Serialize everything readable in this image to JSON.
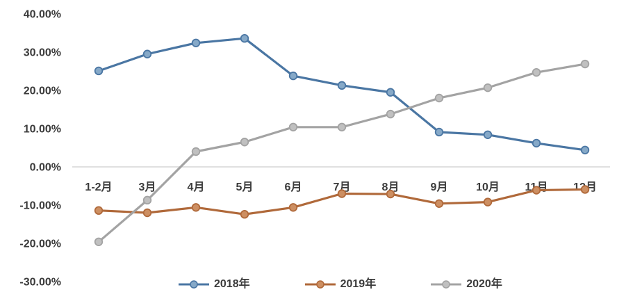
{
  "chart_data": {
    "type": "line",
    "title": "",
    "xlabel": "",
    "ylabel": "",
    "unit": "percent",
    "categories": [
      "1-2月",
      "3月",
      "4月",
      "5月",
      "6月",
      "7月",
      "8月",
      "9月",
      "10月",
      "11月",
      "12月"
    ],
    "series": [
      {
        "name": "2018年",
        "color": "#4a76a3",
        "marker_fill": "#86a9c8",
        "values": [
          25.1,
          29.5,
          32.4,
          33.6,
          23.8,
          21.3,
          19.5,
          9.1,
          8.4,
          6.2,
          4.4
        ]
      },
      {
        "name": "2019年",
        "color": "#b0693a",
        "marker_fill": "#cd8f62",
        "values": [
          -11.4,
          -12.0,
          -10.6,
          -12.4,
          -10.6,
          -7.0,
          -7.1,
          -9.6,
          -9.2,
          -6.1,
          -5.9
        ]
      },
      {
        "name": "2020年",
        "color": "#a3a3a3",
        "marker_fill": "#c0c0c0",
        "values": [
          -19.6,
          -8.7,
          4.0,
          6.5,
          10.4,
          10.4,
          13.8,
          18.0,
          20.7,
          24.7,
          26.9
        ]
      }
    ],
    "y_axis": {
      "tick_labels": [
        "40.00%",
        "30.00%",
        "20.00%",
        "10.00%",
        "0.00%",
        "-10.00%",
        "-20.00%",
        "-30.00%"
      ],
      "tick_values": [
        40,
        30,
        20,
        10,
        0,
        -10,
        -20,
        -30
      ],
      "min": -30,
      "max": 40
    },
    "grid": "zero-line-only",
    "legend_position": "bottom",
    "axis_line_color": "#d6d6d6",
    "text_color": "#3b3b3b",
    "background": "#ffffff"
  }
}
